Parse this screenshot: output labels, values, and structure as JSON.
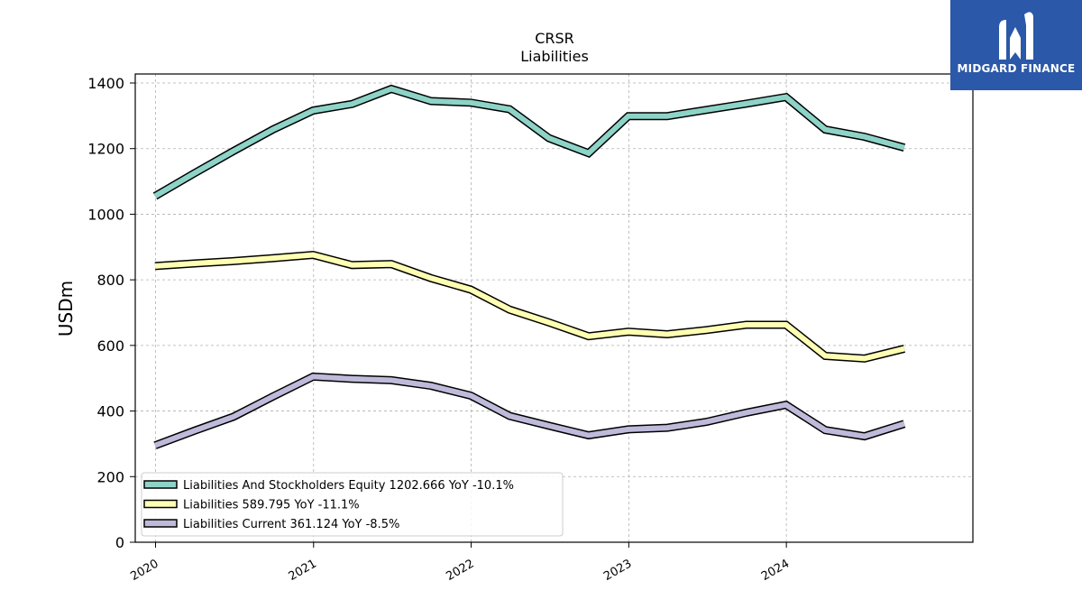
{
  "brand": {
    "name": "MIDGARD FINANCE",
    "bg_color": "#2b58a8",
    "icon": "midgard-logo-icon"
  },
  "chart_data": {
    "type": "line",
    "title": "CRSR",
    "subtitle": "Liabilities",
    "ylabel": "USDm",
    "xlabel": "",
    "ylim": [
      0,
      1400
    ],
    "yticks": [
      0,
      200,
      400,
      600,
      800,
      1000,
      1200,
      1400
    ],
    "xlim": [
      "2019-11-15",
      "2025-03-08"
    ],
    "xticks": [
      "2020",
      "2021",
      "2022",
      "2023",
      "2024"
    ],
    "grid": true,
    "legend_position": "lower-left",
    "x": [
      "2019-12-31",
      "2020-03-31",
      "2020-06-30",
      "2020-09-30",
      "2020-12-31",
      "2021-03-31",
      "2021-06-30",
      "2021-09-30",
      "2021-12-31",
      "2022-03-31",
      "2022-06-30",
      "2022-09-30",
      "2022-12-31",
      "2023-03-31",
      "2023-06-30",
      "2023-09-30",
      "2023-12-31",
      "2024-03-31",
      "2024-06-30",
      "2024-09-30"
    ],
    "series": [
      {
        "name": "Liabilities And Stockholders Equity",
        "legend": "Liabilities And Stockholders Equity  1202.666 YoY -10.1%",
        "color": "#8dd3c7",
        "values": [
          1055,
          1125,
          1193,
          1259,
          1316,
          1336,
          1382,
          1345,
          1340,
          1320,
          1232,
          1186,
          1299,
          1299,
          1318,
          1337,
          1357,
          1258,
          1236,
          1203
        ]
      },
      {
        "name": "Liabilities",
        "legend": "Liabilities  589.795 YoY -11.1%",
        "color": "#ffffb3",
        "values": [
          842,
          850,
          857,
          866,
          876,
          845,
          848,
          805,
          770,
          709,
          670,
          628,
          642,
          634,
          647,
          663,
          663,
          568,
          560,
          590
        ]
      },
      {
        "name": "Liabilities Current",
        "legend": "Liabilities Current  361.124 YoY -8.5%",
        "color": "#bebada",
        "values": [
          295,
          340,
          383,
          445,
          505,
          498,
          494,
          477,
          447,
          385,
          355,
          326,
          344,
          349,
          367,
          395,
          419,
          342,
          323,
          361
        ]
      }
    ]
  }
}
